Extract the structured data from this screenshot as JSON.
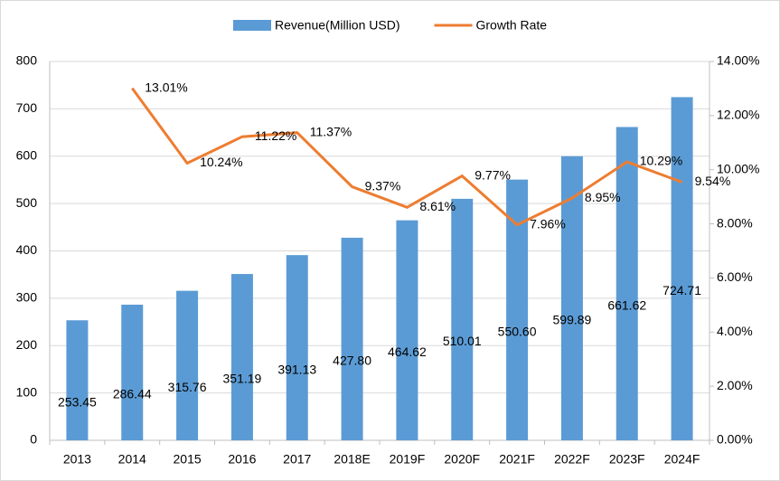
{
  "chart_data": {
    "type": "combo",
    "categories": [
      "2013",
      "2014",
      "2015",
      "2016",
      "2017",
      "2018E",
      "2019F",
      "2020F",
      "2021F",
      "2022F",
      "2023F",
      "2024F"
    ],
    "series": [
      {
        "name": "Revenue(Million USD)",
        "type": "bar",
        "color": "#5b9bd5",
        "values": [
          253.45,
          286.44,
          315.76,
          351.19,
          391.13,
          427.8,
          464.62,
          510.01,
          550.6,
          599.89,
          661.62,
          724.71
        ],
        "value_labels": [
          "253.45",
          "286.44",
          "315.76",
          "351.19",
          "391.13",
          "427.80",
          "464.62",
          "510.01",
          "550.60",
          "599.89",
          "661.62",
          "724.71"
        ]
      },
      {
        "name": "Growth Rate",
        "type": "line",
        "axis": "y2",
        "color": "#ed7d31",
        "values": [
          null,
          13.01,
          10.24,
          11.22,
          11.37,
          9.37,
          8.61,
          9.77,
          7.96,
          8.95,
          10.29,
          9.54
        ],
        "value_labels": [
          null,
          "13.01%",
          "10.24%",
          "11.22%",
          "11.37%",
          "9.37%",
          "8.61%",
          "9.77%",
          "7.96%",
          "8.95%",
          "10.29%",
          "9.54%"
        ]
      }
    ],
    "ylim": [
      0,
      800
    ],
    "yticks": [
      0,
      100,
      200,
      300,
      400,
      500,
      600,
      700,
      800
    ],
    "y2lim": [
      0,
      14
    ],
    "y2ticks": [
      {
        "value": 0,
        "label": "0.00%"
      },
      {
        "value": 2,
        "label": "2.00%"
      },
      {
        "value": 4,
        "label": "4.00%"
      },
      {
        "value": 6,
        "label": "6.00%"
      },
      {
        "value": 8,
        "label": "8.00%"
      },
      {
        "value": 10,
        "label": "10.00%"
      },
      {
        "value": 12,
        "label": "12.00%"
      },
      {
        "value": 14,
        "label": "14.00%"
      }
    ],
    "grid": true,
    "legend": "top"
  }
}
